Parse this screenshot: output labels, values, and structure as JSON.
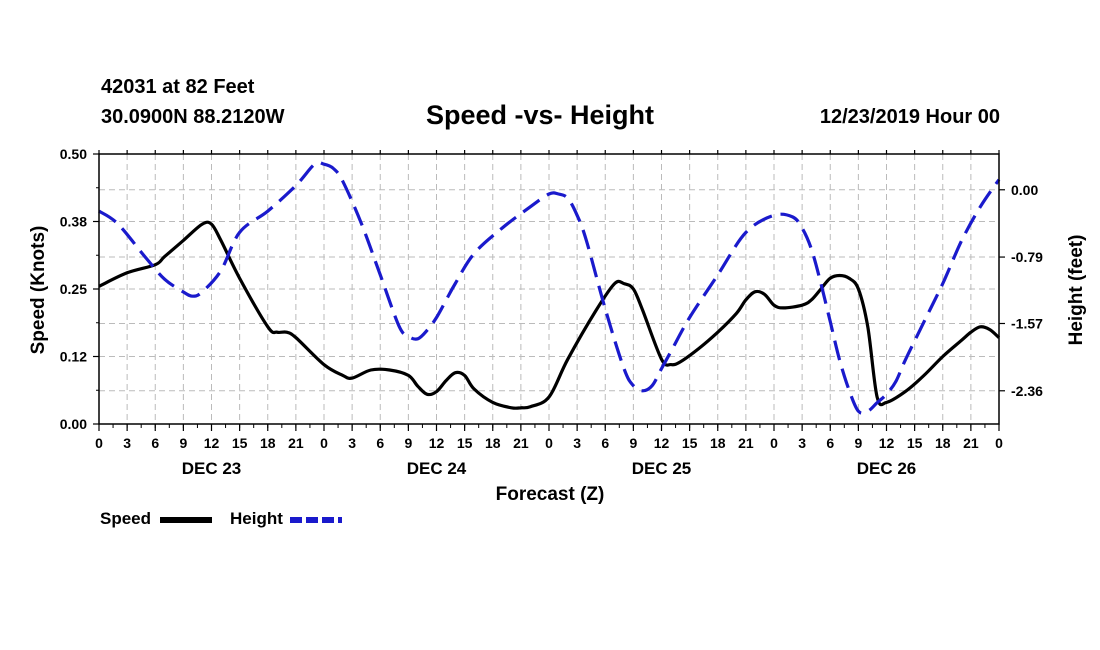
{
  "header": {
    "station": "42031 at 82 Feet",
    "coords": "30.0900N 88.2120W",
    "title": "Speed -vs- Height",
    "timestamp": "12/23/2019 Hour 00"
  },
  "legend": {
    "speed_label": "Speed",
    "height_label": "Height"
  },
  "colors": {
    "speed": "#000000",
    "height": "#1a1acc",
    "grid": "#bbbbbb"
  },
  "chart_data": {
    "type": "line",
    "title": "Speed -vs- Height",
    "xlabel": "Forecast (Z)",
    "ylabel": "Speed (Knots)",
    "y2label": "Height (feet)",
    "x_unit": "hours from 12/23/2019 00Z",
    "xlim": [
      0,
      96
    ],
    "ylim": [
      0,
      0.5
    ],
    "y2lim": [
      -2.75,
      0.42
    ],
    "y_ticks": [
      "0.00",
      "0.12",
      "0.25",
      "0.38",
      "0.50"
    ],
    "y_tick_values": [
      0,
      0.125,
      0.25,
      0.375,
      0.5
    ],
    "y2_ticks": [
      "0.00",
      "-0.79",
      "-1.57",
      "-2.36"
    ],
    "y2_tick_values": [
      0,
      -0.79,
      -1.57,
      -2.36
    ],
    "x_ticks": [
      "0",
      "3",
      "6",
      "9",
      "12",
      "15",
      "18",
      "21",
      "0",
      "3",
      "6",
      "9",
      "12",
      "15",
      "18",
      "21",
      "0",
      "3",
      "6",
      "9",
      "12",
      "15",
      "18",
      "21",
      "0",
      "3",
      "6",
      "9",
      "12",
      "15",
      "18",
      "21",
      "0"
    ],
    "x_tick_values": [
      0,
      3,
      6,
      9,
      12,
      15,
      18,
      21,
      24,
      27,
      30,
      33,
      36,
      39,
      42,
      45,
      48,
      51,
      54,
      57,
      60,
      63,
      66,
      69,
      72,
      75,
      78,
      81,
      84,
      87,
      90,
      93,
      96
    ],
    "day_labels": [
      {
        "label": "DEC 23",
        "hour": 12
      },
      {
        "label": "DEC 24",
        "hour": 36
      },
      {
        "label": "DEC 25",
        "hour": 60
      },
      {
        "label": "DEC 26",
        "hour": 84
      }
    ],
    "series": [
      {
        "name": "Speed",
        "axis": "left",
        "style": "solid",
        "x": [
          0,
          3,
          6,
          7,
          9,
          11,
          12,
          13,
          15,
          18,
          19,
          20,
          21,
          24,
          26,
          27,
          29,
          31,
          33,
          34,
          35,
          36,
          37,
          38,
          39,
          40,
          42,
          44,
          45,
          46,
          48,
          50,
          53,
          55,
          56,
          57,
          58,
          60,
          61,
          62,
          64,
          66,
          68,
          69,
          70,
          71,
          72,
          73,
          75,
          76,
          77,
          78,
          79,
          80,
          81,
          82,
          83,
          84,
          86,
          88,
          90,
          92,
          93,
          94,
          95,
          96
        ],
        "values": [
          0.255,
          0.28,
          0.295,
          0.31,
          0.34,
          0.37,
          0.37,
          0.34,
          0.27,
          0.18,
          0.17,
          0.17,
          0.16,
          0.11,
          0.09,
          0.085,
          0.1,
          0.1,
          0.09,
          0.07,
          0.055,
          0.06,
          0.08,
          0.095,
          0.09,
          0.065,
          0.04,
          0.03,
          0.03,
          0.032,
          0.05,
          0.12,
          0.21,
          0.26,
          0.26,
          0.25,
          0.21,
          0.12,
          0.11,
          0.115,
          0.14,
          0.17,
          0.205,
          0.23,
          0.245,
          0.24,
          0.22,
          0.215,
          0.22,
          0.23,
          0.25,
          0.27,
          0.275,
          0.27,
          0.25,
          0.18,
          0.05,
          0.04,
          0.06,
          0.09,
          0.125,
          0.155,
          0.17,
          0.18,
          0.175,
          0.16
        ]
      },
      {
        "name": "Height",
        "axis": "right",
        "style": "dashed",
        "x": [
          0,
          2,
          5,
          7,
          9,
          10,
          11,
          13,
          15,
          18,
          21,
          23,
          24,
          25,
          26,
          28,
          30,
          32,
          33,
          34,
          35,
          36,
          37,
          38,
          40,
          43,
          46,
          48,
          49,
          50,
          51,
          52,
          54,
          56,
          57,
          58,
          59,
          60,
          61,
          63,
          66,
          69,
          72,
          74,
          75,
          76,
          77,
          78,
          79,
          80,
          81,
          82,
          83,
          84,
          85,
          86,
          88,
          90,
          92,
          94,
          96
        ],
        "values": [
          -0.25,
          -0.4,
          -0.8,
          -1.05,
          -1.2,
          -1.25,
          -1.2,
          -0.95,
          -0.5,
          -0.25,
          0.05,
          0.3,
          0.3,
          0.25,
          0.1,
          -0.4,
          -1.0,
          -1.6,
          -1.72,
          -1.75,
          -1.65,
          -1.5,
          -1.3,
          -1.1,
          -0.75,
          -0.45,
          -0.2,
          -0.05,
          -0.05,
          -0.1,
          -0.3,
          -0.6,
          -1.4,
          -2.1,
          -2.3,
          -2.36,
          -2.3,
          -2.1,
          -1.9,
          -1.5,
          -1.0,
          -0.5,
          -0.3,
          -0.32,
          -0.45,
          -0.7,
          -1.1,
          -1.55,
          -2.0,
          -2.35,
          -2.6,
          -2.6,
          -2.5,
          -2.4,
          -2.25,
          -2.0,
          -1.55,
          -1.1,
          -0.6,
          -0.2,
          0.12
        ]
      }
    ]
  }
}
